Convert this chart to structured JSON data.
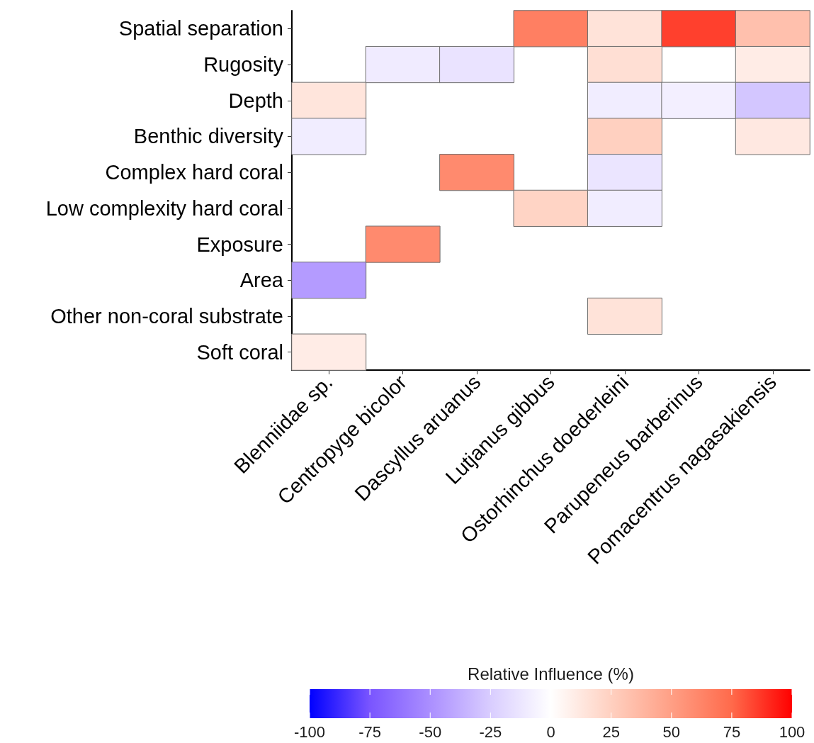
{
  "chart_data": {
    "type": "heatmap",
    "categories": [
      "Blenniidae sp.",
      "Centropyge bicolor",
      "Dascyllus aruanus",
      "Lutjanus gibbus",
      "Ostorhinchus doederleini",
      "Parupeneus barberinus",
      "Pomacentrus nagasakiensis"
    ],
    "y_categories": [
      "Spatial separation",
      "Rugosity",
      "Depth",
      "Benthic diversity",
      "Complex hard coral",
      "Low complexity hard coral",
      "Exposure",
      "Area",
      "Other non-coral substrate",
      "Soft coral"
    ],
    "cells": [
      [
        null,
        null,
        null,
        65,
        15,
        85,
        33
      ],
      [
        null,
        -10,
        -14,
        null,
        17,
        null,
        10
      ],
      [
        14,
        null,
        null,
        null,
        -9,
        -8,
        -28
      ],
      [
        -9,
        null,
        null,
        null,
        25,
        null,
        12
      ],
      [
        null,
        null,
        60,
        null,
        -13,
        null,
        null
      ],
      [
        null,
        null,
        null,
        23,
        -9,
        null,
        null
      ],
      [
        null,
        60,
        null,
        null,
        null,
        null,
        null
      ],
      [
        -45,
        null,
        null,
        null,
        null,
        null,
        null
      ],
      [
        null,
        null,
        null,
        null,
        15,
        null,
        null
      ],
      [
        10,
        null,
        null,
        null,
        null,
        null,
        null
      ]
    ],
    "clabel": "Relative Influence (%)",
    "clim": [
      -100,
      100
    ],
    "cticks": [
      -100,
      -75,
      -50,
      -25,
      0,
      25,
      50,
      75,
      100
    ]
  }
}
